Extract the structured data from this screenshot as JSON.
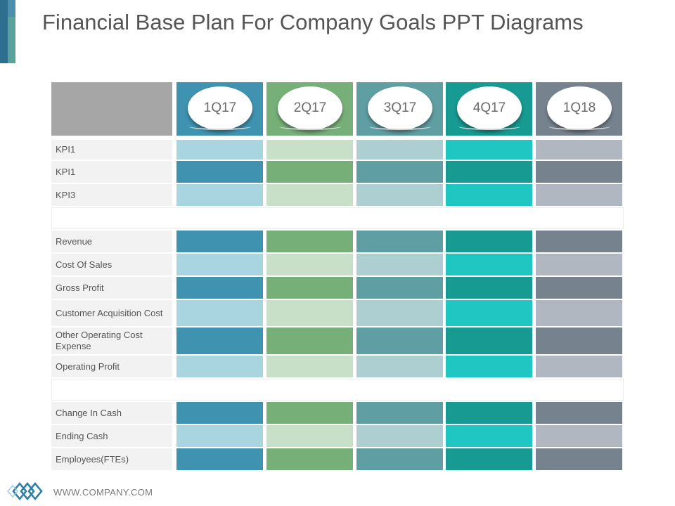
{
  "title": "Financial Base Plan For Company Goals PPT Diagrams",
  "columns": [
    "1Q17",
    "2Q17",
    "3Q17",
    "4Q17",
    "1Q18"
  ],
  "header_colors": [
    "#3f93b0",
    "#77af78",
    "#5f9ea2",
    "#179a91",
    "#76838f"
  ],
  "light_colors": [
    "#a9d5e1",
    "#c9e0c8",
    "#aecfd2",
    "#1fc6c2",
    "#b0b7c0"
  ],
  "dark_colors": [
    "#3f93b0",
    "#77af78",
    "#5f9ea2",
    "#179a91",
    "#76838f"
  ],
  "rows": [
    {
      "label": "KPI1",
      "shade": "light"
    },
    {
      "label": "KPI1",
      "shade": "dark"
    },
    {
      "label": "KPI3",
      "shade": "light"
    },
    {
      "label": "",
      "shade": "spacer"
    },
    {
      "label": "Revenue",
      "shade": "dark"
    },
    {
      "label": "Cost Of Sales",
      "shade": "light"
    },
    {
      "label": "Gross Profit",
      "shade": "dark"
    },
    {
      "label": "Customer Acquisition Cost",
      "shade": "light"
    },
    {
      "label": "Other Operating Cost Expense",
      "shade": "dark"
    },
    {
      "label": "Operating Profit",
      "shade": "light"
    },
    {
      "label": "",
      "shade": "spacer"
    },
    {
      "label": "Change In Cash",
      "shade": "dark"
    },
    {
      "label": "Ending Cash",
      "shade": "light"
    },
    {
      "label": "Employees(FTEs)",
      "shade": "dark"
    }
  ],
  "footer": {
    "website": "WWW.COMPANY.COM",
    "logo_icon": "diamond-chain-logo-icon"
  }
}
